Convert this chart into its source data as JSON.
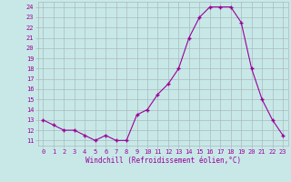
{
  "x": [
    0,
    1,
    2,
    3,
    4,
    5,
    6,
    7,
    8,
    9,
    10,
    11,
    12,
    13,
    14,
    15,
    16,
    17,
    18,
    19,
    20,
    21,
    22,
    23
  ],
  "y": [
    13,
    12.5,
    12,
    12,
    11.5,
    11,
    11.5,
    11,
    11,
    13.5,
    14,
    15.5,
    16.5,
    18,
    21,
    23,
    24,
    24,
    24,
    22.5,
    18,
    15,
    13,
    11.5
  ],
  "line_color": "#990099",
  "marker_color": "#990099",
  "bg_color": "#c8e8e8",
  "grid_color": "#aabbbb",
  "xlabel": "Windchill (Refroidissement éolien,°C)",
  "xlabel_color": "#990099",
  "xtick_labels": [
    "0",
    "1",
    "2",
    "3",
    "4",
    "5",
    "6",
    "7",
    "8",
    "9",
    "10",
    "11",
    "12",
    "13",
    "14",
    "15",
    "16",
    "17",
    "18",
    "19",
    "20",
    "21",
    "22",
    "23"
  ],
  "ylim": [
    10.5,
    24.5
  ],
  "xlim": [
    -0.5,
    23.5
  ],
  "ytick_min": 11,
  "ytick_max": 24,
  "figsize": [
    3.2,
    2.0
  ],
  "dpi": 100
}
